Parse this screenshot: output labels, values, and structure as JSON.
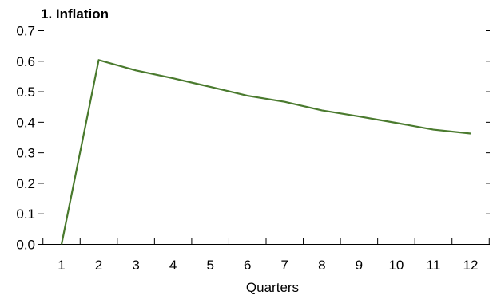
{
  "chart_data": {
    "type": "line",
    "title": "1. Inflation",
    "xlabel": "Quarters",
    "ylabel": "",
    "x": [
      1,
      2,
      3,
      4,
      5,
      6,
      7,
      8,
      9,
      10,
      11,
      12
    ],
    "xticks": [
      "1",
      "2",
      "3",
      "4",
      "5",
      "6",
      "7",
      "8",
      "9",
      "10",
      "11",
      "12"
    ],
    "yticks": [
      "0.0",
      "0.1",
      "0.2",
      "0.3",
      "0.4",
      "0.5",
      "0.6",
      "0.7"
    ],
    "ylim": [
      0,
      0.7
    ],
    "grid": false,
    "series": [
      {
        "values": [
          0.0,
          0.604,
          0.57,
          0.544,
          0.516,
          0.487,
          0.467,
          0.439,
          0.419,
          0.398,
          0.376,
          0.363
        ],
        "color": "#4a7a2e"
      }
    ]
  }
}
